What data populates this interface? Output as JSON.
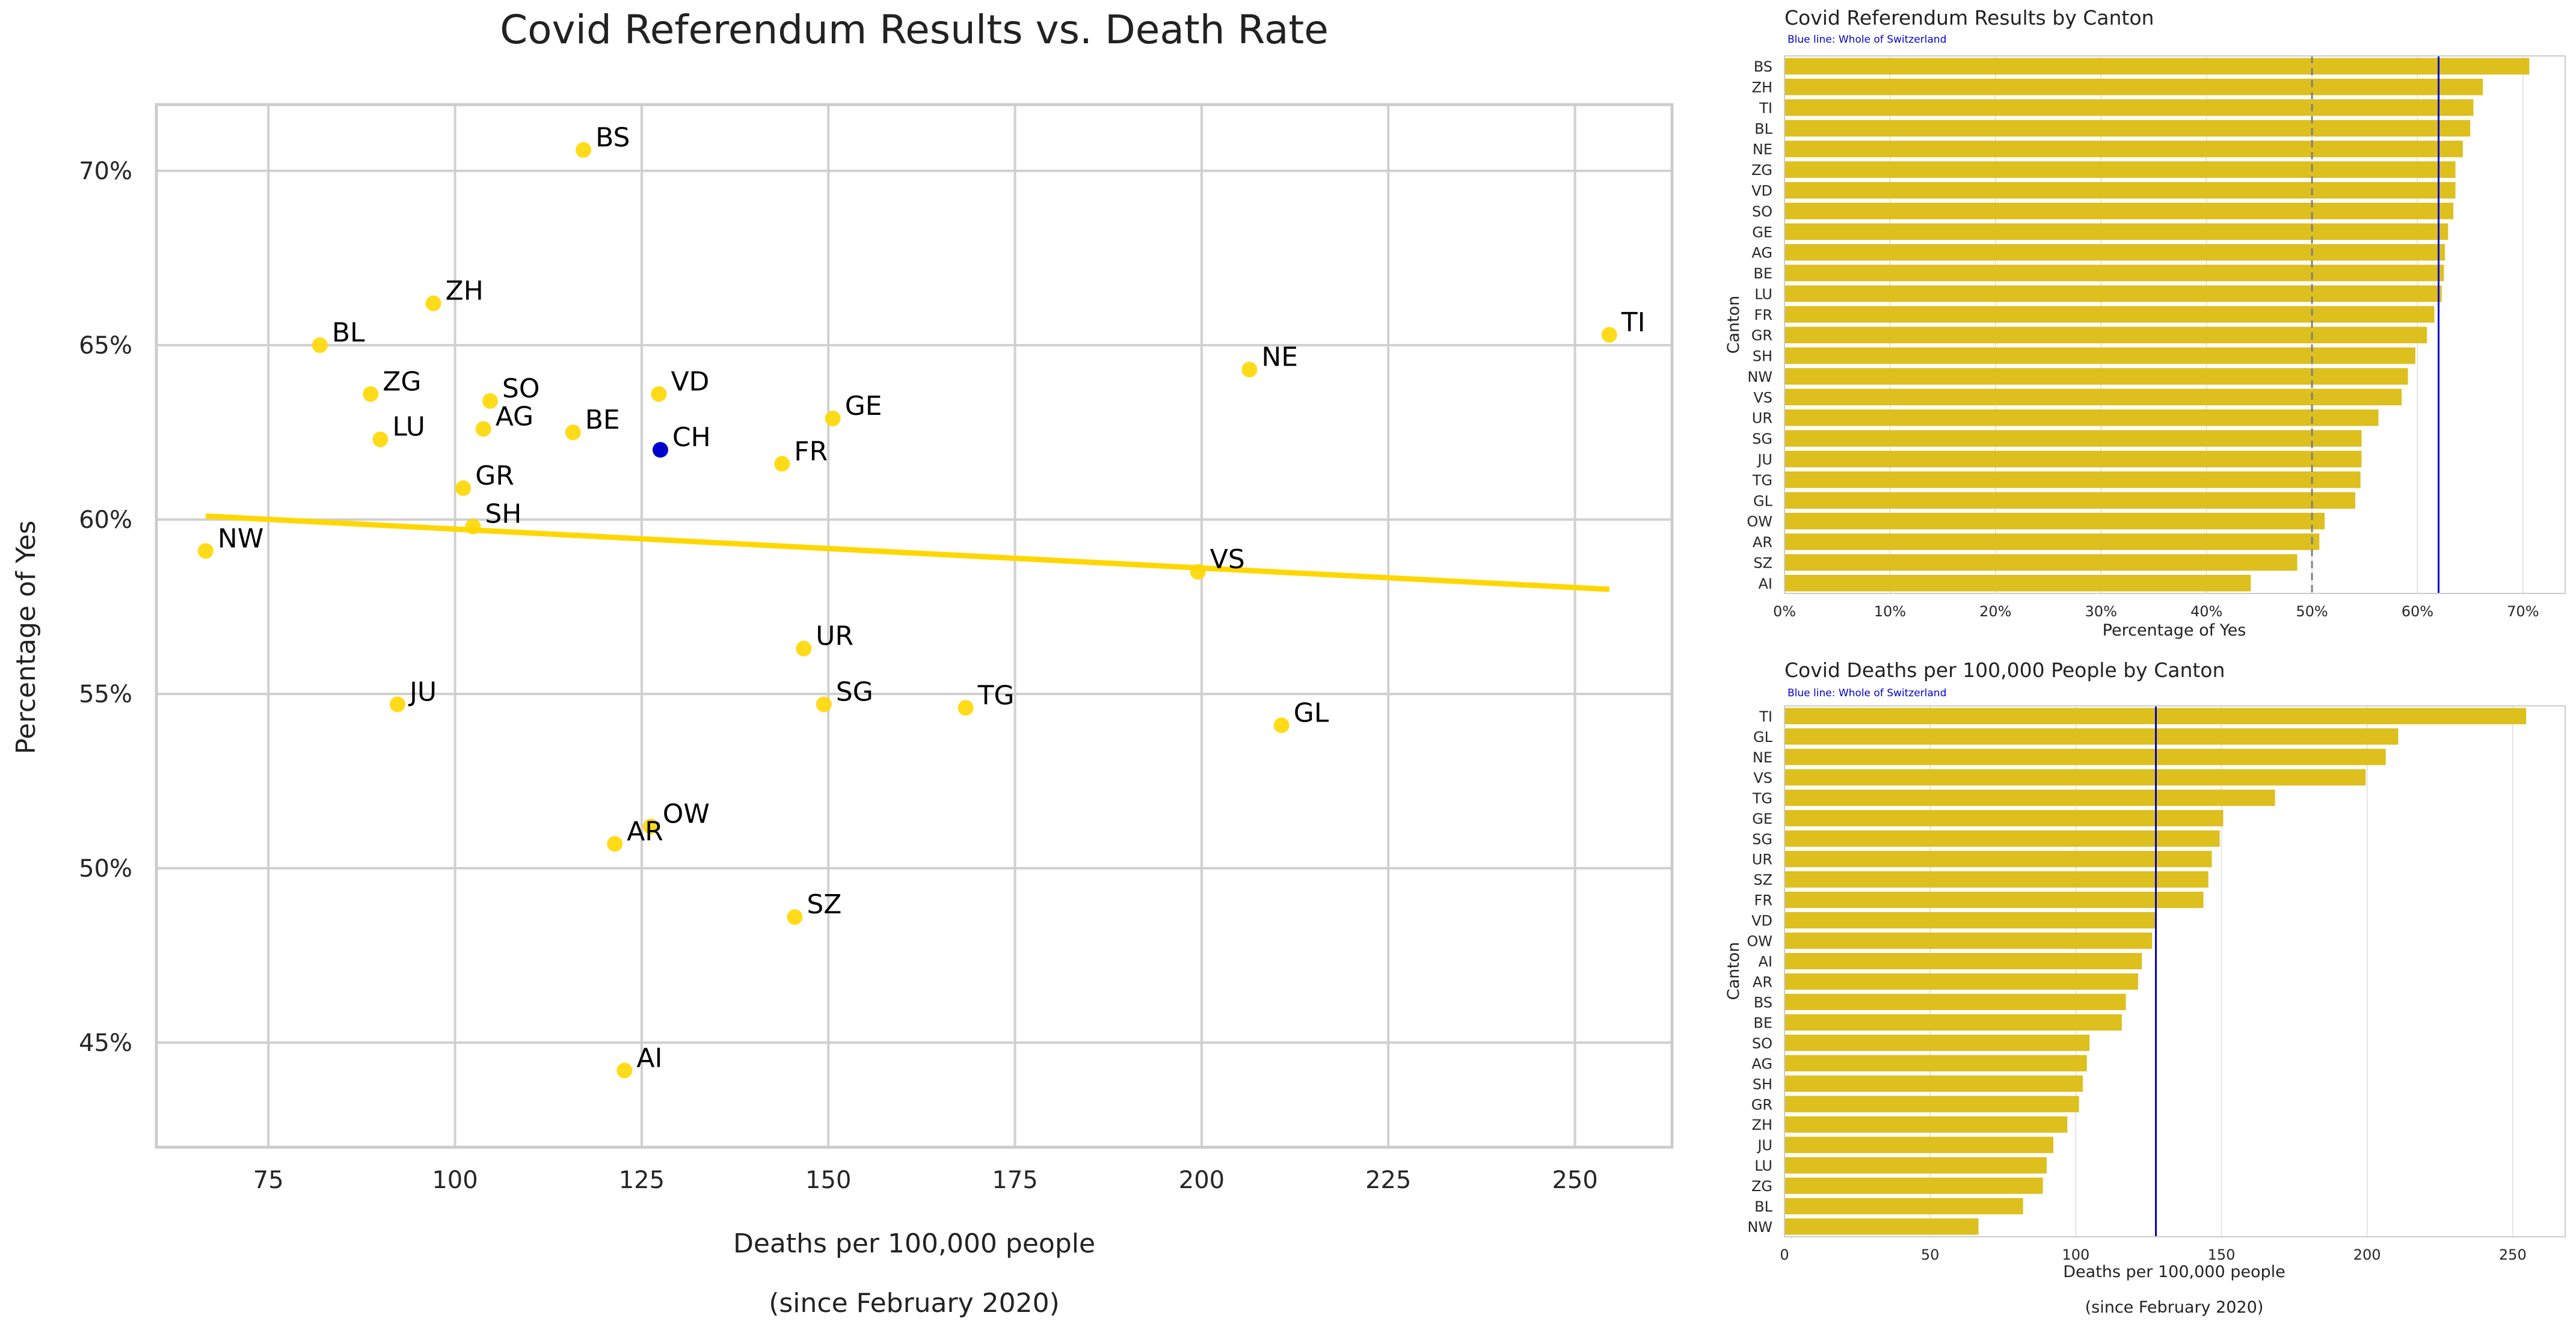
{
  "colors": {
    "yellow": "#FFD700",
    "bar": "#DDBF1E",
    "switzerland": "#0000CD",
    "grid": "#D0D0D0",
    "frame": "#CCCCCC",
    "dash": "#7F7F7F"
  },
  "chart_data": [
    {
      "type": "scatter",
      "title": "Covid Referendum Results vs. Death Rate",
      "xlabel": "Deaths per 100,000 people",
      "xlabel2": "(since February 2020)",
      "ylabel": "Percentage of Yes",
      "xlim": [
        60,
        263
      ],
      "ylim": [
        42,
        71.9
      ],
      "xticks": [
        75,
        100,
        125,
        150,
        175,
        200,
        225,
        250
      ],
      "yticks": [
        45,
        50,
        55,
        60,
        65,
        70
      ],
      "yticklabels": [
        "45%",
        "50%",
        "55%",
        "60%",
        "65%",
        "70%"
      ],
      "points": [
        {
          "label": "BS",
          "x": 117.2,
          "y": 70.6
        },
        {
          "label": "ZH",
          "x": 97.1,
          "y": 66.2
        },
        {
          "label": "BL",
          "x": 81.9,
          "y": 65.0
        },
        {
          "label": "ZG",
          "x": 88.7,
          "y": 63.6
        },
        {
          "label": "SO",
          "x": 104.7,
          "y": 63.4
        },
        {
          "label": "VD",
          "x": 127.3,
          "y": 63.6
        },
        {
          "label": "AG",
          "x": 103.8,
          "y": 62.6
        },
        {
          "label": "BE",
          "x": 115.8,
          "y": 62.5
        },
        {
          "label": "LU",
          "x": 90.0,
          "y": 62.3
        },
        {
          "label": "GE",
          "x": 150.6,
          "y": 62.9
        },
        {
          "label": "FR",
          "x": 143.8,
          "y": 61.6
        },
        {
          "label": "GR",
          "x": 101.1,
          "y": 60.9
        },
        {
          "label": "SH",
          "x": 102.4,
          "y": 59.8
        },
        {
          "label": "NW",
          "x": 66.6,
          "y": 59.1
        },
        {
          "label": "NE",
          "x": 206.4,
          "y": 64.3
        },
        {
          "label": "TI",
          "x": 254.6,
          "y": 65.3
        },
        {
          "label": "VS",
          "x": 199.5,
          "y": 58.5
        },
        {
          "label": "UR",
          "x": 146.7,
          "y": 56.3
        },
        {
          "label": "JU",
          "x": 92.3,
          "y": 54.7
        },
        {
          "label": "SG",
          "x": 149.4,
          "y": 54.7
        },
        {
          "label": "TG",
          "x": 168.4,
          "y": 54.6
        },
        {
          "label": "GL",
          "x": 210.7,
          "y": 54.1
        },
        {
          "label": "OW",
          "x": 126.2,
          "y": 51.2
        },
        {
          "label": "AR",
          "x": 121.4,
          "y": 50.7
        },
        {
          "label": "SZ",
          "x": 145.5,
          "y": 48.6
        },
        {
          "label": "AI",
          "x": 122.7,
          "y": 44.2
        }
      ],
      "highlight": {
        "label": "CH",
        "x": 127.5,
        "y": 62.0
      },
      "trendline": {
        "x": [
          66.6,
          254.6
        ],
        "y": [
          60.1,
          58.0
        ]
      }
    },
    {
      "type": "bar",
      "orientation": "horizontal",
      "title": "Covid Referendum Results by Canton",
      "note": "Blue line: Whole of Switzerland",
      "xlabel": "Percentage of Yes",
      "ylabel": "Canton",
      "xlim": [
        0,
        74
      ],
      "xticks": [
        0,
        10,
        20,
        30,
        40,
        50,
        60,
        70
      ],
      "xticklabels": [
        "0%",
        "10%",
        "20%",
        "30%",
        "40%",
        "50%",
        "60%",
        "70%"
      ],
      "reference": 62.0,
      "dashed_reference": 50,
      "categories": [
        "BS",
        "ZH",
        "TI",
        "BL",
        "NE",
        "ZG",
        "VD",
        "SO",
        "GE",
        "AG",
        "BE",
        "LU",
        "FR",
        "GR",
        "SH",
        "NW",
        "VS",
        "UR",
        "SG",
        "JU",
        "TG",
        "GL",
        "OW",
        "AR",
        "SZ",
        "AI"
      ],
      "values": [
        70.6,
        66.2,
        65.3,
        65.0,
        64.3,
        63.6,
        63.6,
        63.4,
        62.9,
        62.6,
        62.5,
        62.3,
        61.6,
        60.9,
        59.8,
        59.1,
        58.5,
        56.3,
        54.7,
        54.7,
        54.6,
        54.1,
        51.2,
        50.7,
        48.6,
        44.2
      ]
    },
    {
      "type": "bar",
      "orientation": "horizontal",
      "title": "Covid Deaths per 100,000 People by Canton",
      "note": "Blue line: Whole of Switzerland",
      "xlabel": "Deaths per 100,000 people",
      "xlabel2": "(since February 2020)",
      "ylabel": "Canton",
      "xlim": [
        0,
        268
      ],
      "xticks": [
        0,
        50,
        100,
        150,
        200,
        250
      ],
      "xticklabels": [
        "0",
        "50",
        "100",
        "150",
        "200",
        "250"
      ],
      "reference": 127.5,
      "categories": [
        "TI",
        "GL",
        "NE",
        "VS",
        "TG",
        "GE",
        "SG",
        "UR",
        "SZ",
        "FR",
        "VD",
        "OW",
        "AI",
        "AR",
        "BS",
        "BE",
        "SO",
        "AG",
        "SH",
        "GR",
        "ZH",
        "JU",
        "LU",
        "ZG",
        "BL",
        "NW"
      ],
      "values": [
        254.6,
        210.7,
        206.4,
        199.5,
        168.4,
        150.6,
        149.4,
        146.7,
        145.5,
        143.8,
        127.3,
        126.2,
        122.7,
        121.4,
        117.2,
        115.8,
        104.7,
        103.8,
        102.4,
        101.1,
        97.1,
        92.3,
        90.0,
        88.7,
        81.9,
        66.6
      ]
    }
  ]
}
